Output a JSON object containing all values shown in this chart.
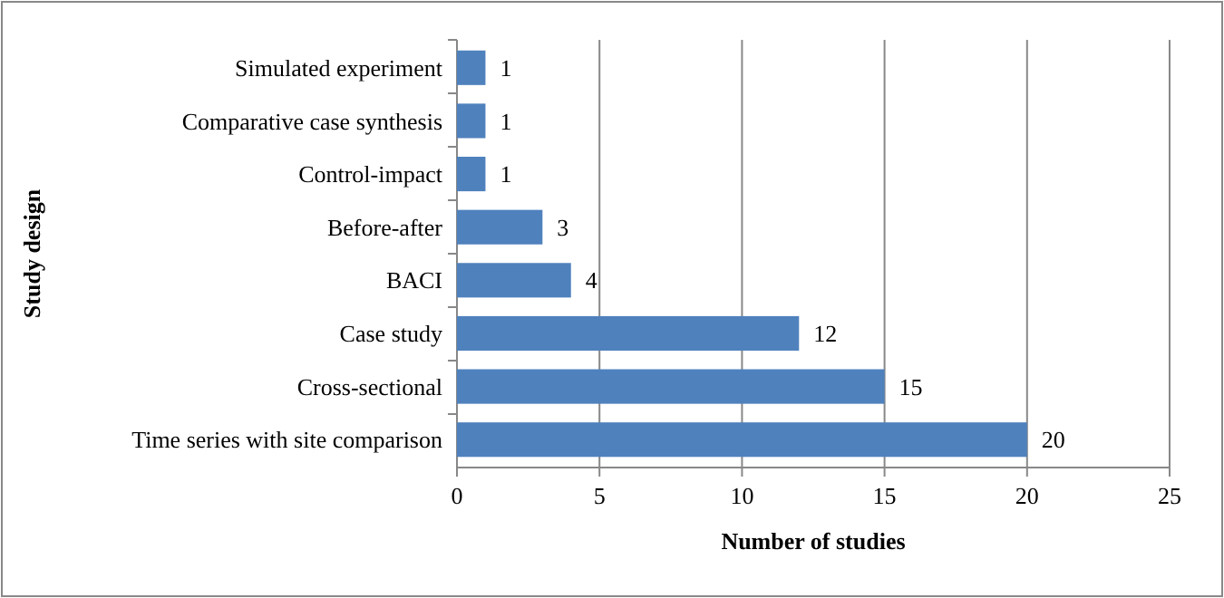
{
  "chart_data": {
    "type": "bar",
    "orientation": "horizontal",
    "xlabel": "Number of studies",
    "ylabel": "Study design",
    "categories": [
      "Simulated experiment",
      "Comparative case synthesis",
      "Control-impact",
      "Before-after",
      "BACI",
      "Case study",
      "Cross-sectional",
      "Time series with site comparison"
    ],
    "values": [
      1,
      1,
      1,
      3,
      4,
      12,
      15,
      20
    ],
    "color": "#4f81bd",
    "xlim": [
      0,
      25
    ],
    "xticks": [
      0,
      5,
      10,
      15,
      20,
      25
    ],
    "grid": "x",
    "data_labels": true
  }
}
